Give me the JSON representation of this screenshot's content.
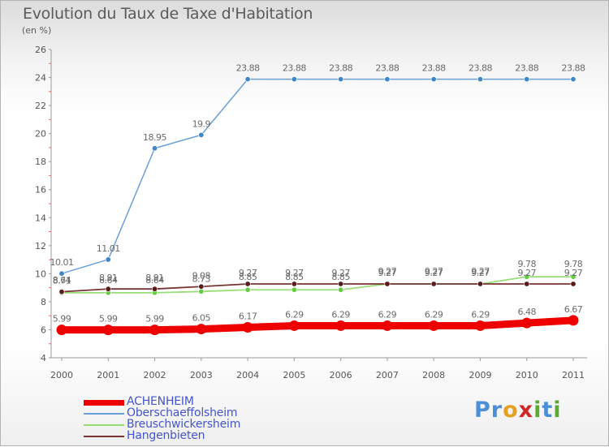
{
  "header": {
    "title": "Evolution du Taux de Taxe d'Habitation",
    "unit": "(en %)"
  },
  "logo": {
    "text": "Proxiti",
    "colors": [
      "#4c8fd6",
      "#e6a020",
      "#d02828",
      "#5aaa34"
    ]
  },
  "chart_data": {
    "type": "line",
    "title": "Evolution du Taux de Taxe d'Habitation",
    "subtitle": "(en %)",
    "xlabel": "",
    "ylabel": "",
    "x": [
      "2000",
      "2001",
      "2002",
      "2003",
      "2004",
      "2005",
      "2006",
      "2007",
      "2008",
      "2009",
      "2010",
      "2011"
    ],
    "ylim": [
      4,
      26
    ],
    "yticks": [
      4,
      6,
      8,
      10,
      12,
      14,
      16,
      18,
      20,
      22,
      24,
      26
    ],
    "grid": false,
    "legend": "bottom-left",
    "series": [
      {
        "name": "ACHENHEIM",
        "color": "#ee0000",
        "values": [
          5.99,
          5.99,
          5.99,
          6.05,
          6.17,
          6.29,
          6.29,
          6.29,
          6.29,
          6.29,
          6.48,
          6.67
        ],
        "labels": [
          "5.99",
          "5.99",
          "5.99",
          "6.05",
          "6.17",
          "6.29",
          "6.29",
          "6.29",
          "6.29",
          "6.29",
          "6.48",
          "6.67"
        ]
      },
      {
        "name": "Oberschaeffolsheim",
        "color": "#6aa0d8",
        "values": [
          10.01,
          11.01,
          18.95,
          19.9,
          23.88,
          23.88,
          23.88,
          23.88,
          23.88,
          23.88,
          23.88,
          23.88
        ],
        "labels": [
          "10.01",
          "11.01",
          "18.95",
          "19.9",
          "23.88",
          "23.88",
          "23.88",
          "23.88",
          "23.88",
          "23.88",
          "23.88",
          "23.88"
        ]
      },
      {
        "name": "Breuschwickersheim",
        "color": "#99dd77",
        "values": [
          8.64,
          8.64,
          8.64,
          8.73,
          8.85,
          8.85,
          8.85,
          9.27,
          9.27,
          9.27,
          9.78,
          9.78
        ],
        "labels": [
          "8.64",
          "8.64",
          "8.64",
          "8.73",
          "8.85",
          "8.85",
          "8.85",
          "9.27",
          "9.27",
          "9.27",
          "9.78",
          "9.78"
        ]
      },
      {
        "name": "Hangenbieten",
        "color": "#773333",
        "values": [
          8.71,
          8.91,
          8.91,
          9.08,
          9.27,
          9.27,
          9.27,
          9.27,
          9.27,
          9.27,
          9.27,
          9.27
        ],
        "labels": [
          "8.71",
          "8.91",
          "8.91",
          "9.08",
          "9.27",
          "9.27",
          "9.27",
          "9.27",
          "9.27",
          "9.27",
          "9.27",
          "9.27"
        ]
      }
    ]
  }
}
